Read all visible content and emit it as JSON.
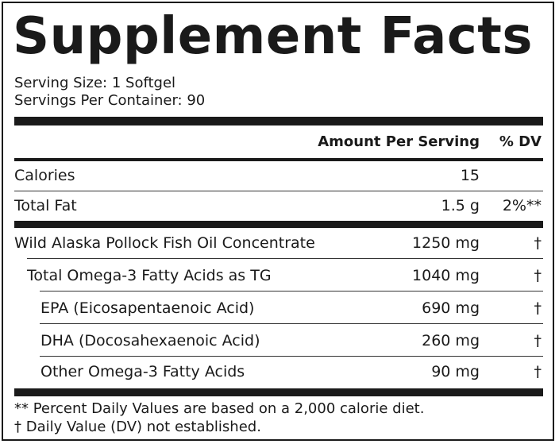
{
  "title": "Supplement Facts",
  "serving_size": "Serving Size: 1 Softgel",
  "servings_per_container": "Servings Per Container: 90",
  "header": {
    "amount": "Amount Per Serving",
    "dv": "% DV"
  },
  "calories": {
    "label": "Calories",
    "amount": "15",
    "dv": ""
  },
  "total_fat": {
    "label": "Total Fat",
    "amount": "1.5 g",
    "dv": "2%**"
  },
  "ingredients": [
    {
      "label": "Wild Alaska Pollock Fish Oil Concentrate",
      "amount": "1250 mg",
      "dv": "†"
    },
    {
      "label": "Total Omega-3 Fatty Acids as TG",
      "amount": "1040 mg",
      "dv": "†"
    },
    {
      "label": "EPA (Eicosapentaenoic Acid)",
      "amount": "690 mg",
      "dv": "†"
    },
    {
      "label": "DHA (Docosahexaenoic Acid)",
      "amount": "260 mg",
      "dv": "†"
    },
    {
      "label": "Other Omega-3 Fatty Acids",
      "amount": "90 mg",
      "dv": "†"
    }
  ],
  "footnotes": [
    "** Percent Daily Values are based on a 2,000 calorie diet.",
    "† Daily Value (DV) not established."
  ]
}
